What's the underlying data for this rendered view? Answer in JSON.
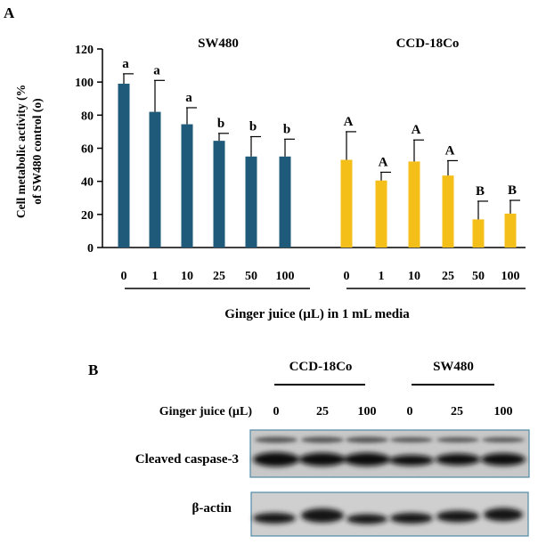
{
  "panel_a": {
    "label": "A",
    "chart_data": {
      "type": "bar",
      "ylabel": "Cell metabolic activity (% of SW480 control (o)",
      "xlabel": "Ginger juice (µL) in 1 mL media",
      "ylim": [
        0,
        120
      ],
      "yticks": [
        "0",
        "20",
        "40",
        "60",
        "80",
        "100",
        "120"
      ],
      "grid": false,
      "groups": [
        {
          "name": "SW480",
          "color": "#1f5a7a",
          "categories": [
            "0",
            "1",
            "10",
            "25",
            "50",
            "100"
          ],
          "values": [
            99,
            82,
            74.5,
            64.5,
            55,
            55
          ],
          "errors": [
            6,
            19,
            10,
            4.5,
            12,
            10.5
          ],
          "letters": [
            "a",
            "a",
            "a",
            "b",
            "b",
            "b"
          ]
        },
        {
          "name": "CCD-18Co",
          "color": "#f5bf1a",
          "categories": [
            "0",
            "1",
            "10",
            "25",
            "50",
            "100"
          ],
          "values": [
            53,
            40.5,
            52,
            43.5,
            17,
            20.5
          ],
          "errors": [
            17,
            5,
            13,
            9,
            11,
            8
          ],
          "letters": [
            "A",
            "A",
            "A",
            "A",
            "B",
            "B"
          ]
        }
      ]
    }
  },
  "panel_b": {
    "label": "B",
    "row_label": "Ginger juice (µL)",
    "groups": [
      {
        "name": "CCD-18Co",
        "doses": [
          "0",
          "25",
          "100"
        ]
      },
      {
        "name": "SW480",
        "doses": [
          "0",
          "25",
          "100"
        ]
      }
    ],
    "blots": [
      {
        "label": "Cleaved caspase-3"
      },
      {
        "label": "β-actin"
      }
    ]
  }
}
